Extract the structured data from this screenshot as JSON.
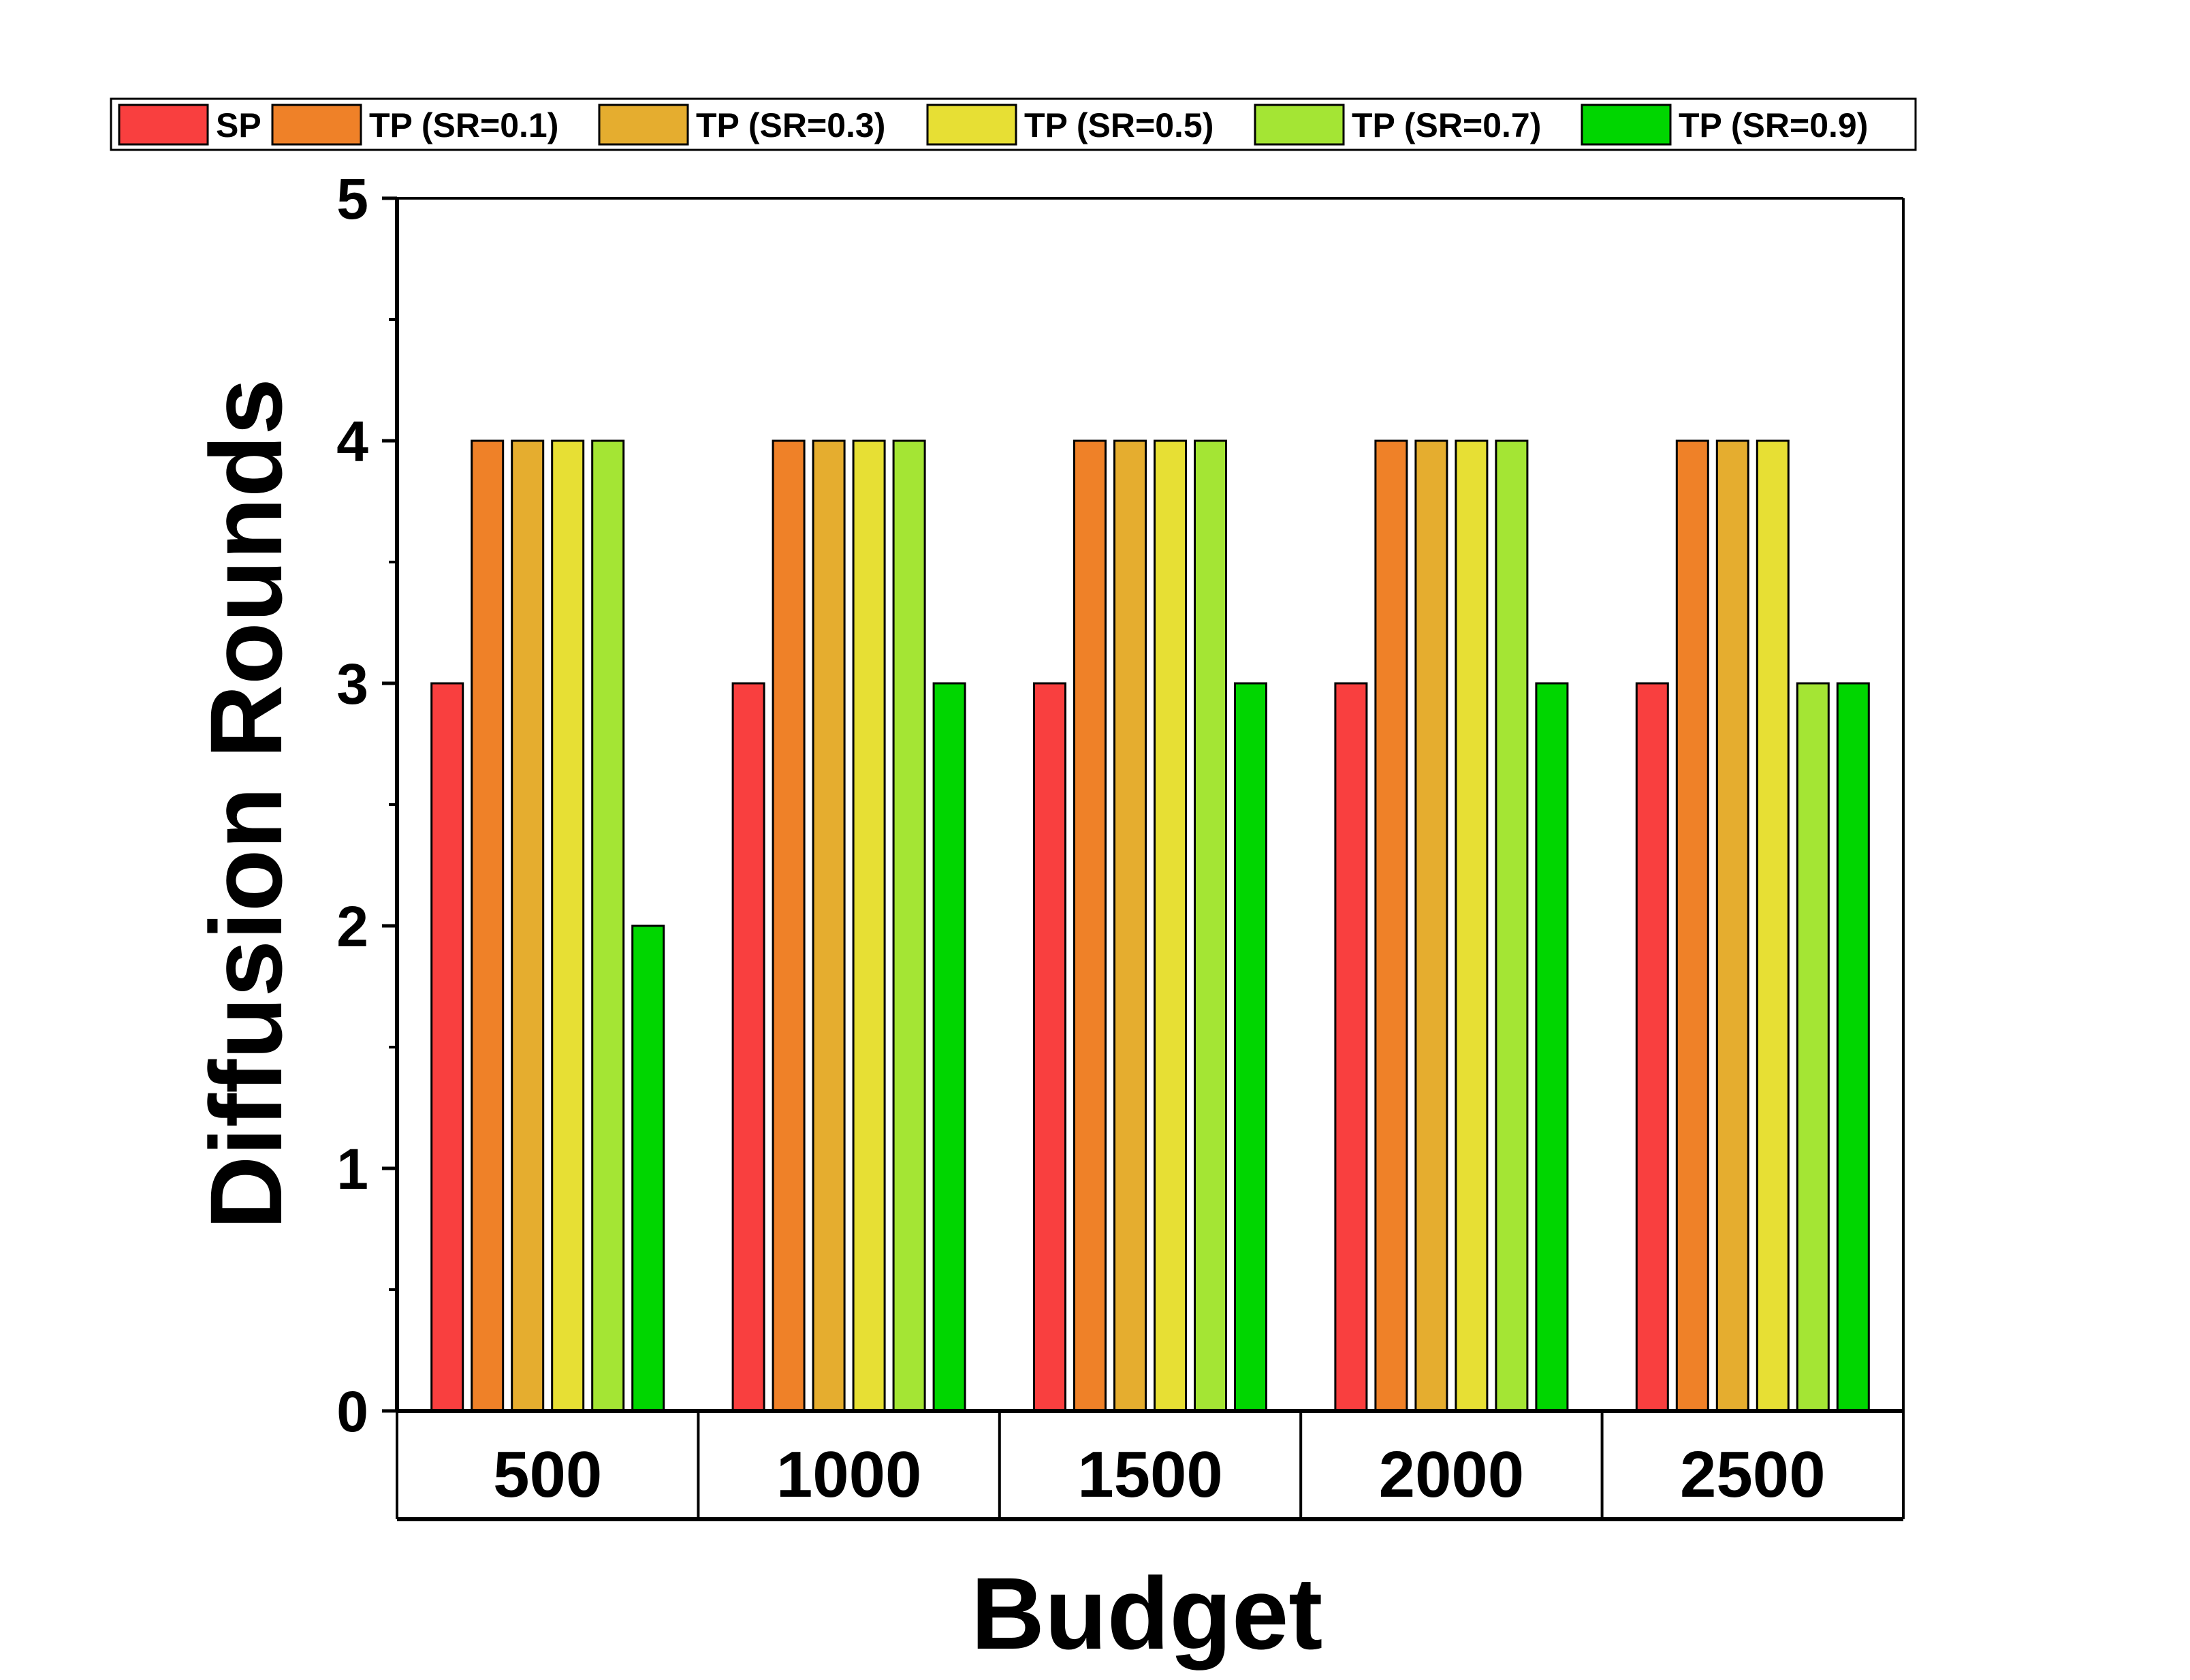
{
  "chart_data": {
    "type": "bar",
    "title": "",
    "xlabel": "Budget",
    "ylabel": "Diffusion Rounds",
    "ylim": [
      0,
      5
    ],
    "yticks": [
      0,
      1,
      2,
      3,
      4,
      5
    ],
    "ytick_labels": [
      "0",
      "1",
      "2",
      "3",
      "4",
      "5"
    ],
    "categories": [
      "500",
      "1000",
      "1500",
      "2000",
      "2500"
    ],
    "legend_position": "top",
    "series": [
      {
        "name": "SP",
        "color": "#f93f3f",
        "values": [
          3,
          3,
          3,
          3,
          3
        ]
      },
      {
        "name": "TP (SR=0.1)",
        "color": "#ef8128",
        "values": [
          4,
          4,
          4,
          4,
          4
        ]
      },
      {
        "name": "TP (SR=0.3)",
        "color": "#e5ad2f",
        "values": [
          4,
          4,
          4,
          4,
          4
        ]
      },
      {
        "name": "TP (SR=0.5)",
        "color": "#e7df34",
        "values": [
          4,
          4,
          4,
          4,
          4
        ]
      },
      {
        "name": "TP (SR=0.7)",
        "color": "#a4e534",
        "values": [
          4,
          4,
          4,
          4,
          3
        ]
      },
      {
        "name": "TP (SR=0.9)",
        "color": "#00d600",
        "values": [
          2,
          3,
          3,
          3,
          3
        ]
      }
    ]
  }
}
